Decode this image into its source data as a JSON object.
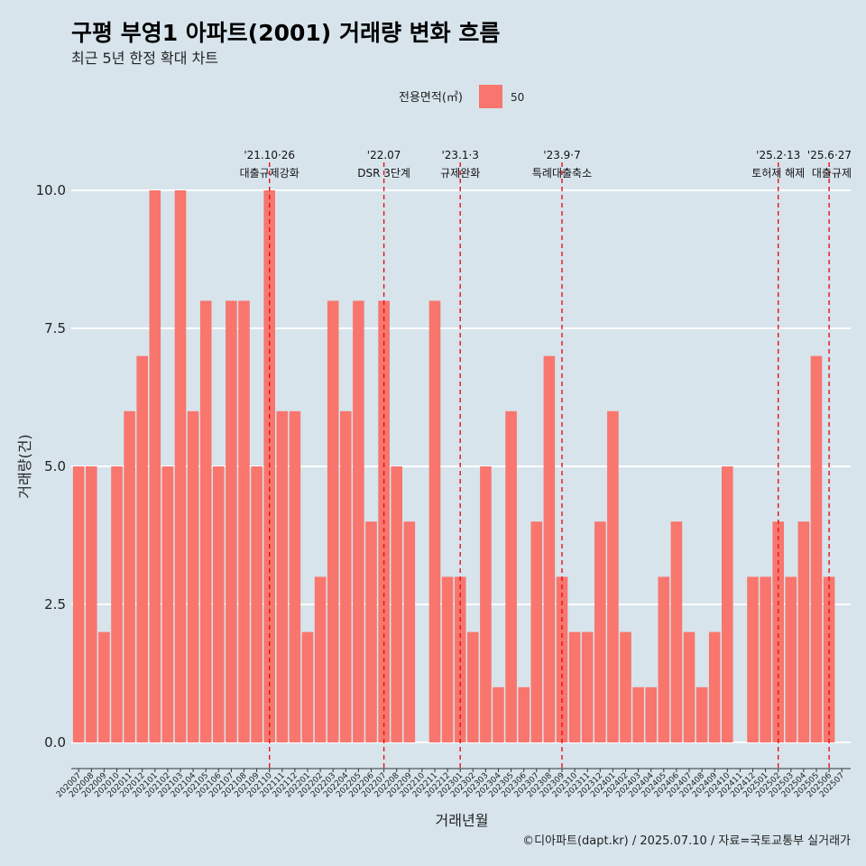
{
  "chart_data": {
    "type": "bar",
    "title": "구평 부영1 아파트(2001) 거래량 변화 흐름",
    "subtitle": "최근 5년 한정 확대 차트",
    "xlabel": "거래년월",
    "ylabel": "거래량(건)",
    "caption": "©디아파트(dapt.kr) / 2025.07.10 / 자료=국토교통부 실거래가",
    "legend": {
      "title": "전용면적(㎡)",
      "entries": [
        {
          "label": "50",
          "color": "#f8766d"
        }
      ],
      "position": "top"
    },
    "ylim": [
      0,
      10.5
    ],
    "yticks": [
      0,
      2.5,
      5,
      7.5,
      10
    ],
    "ytick_labels": [
      "0.0",
      "2.5",
      "5.0",
      "7.5",
      "10.0"
    ],
    "grid": true,
    "bar_color": "#f8766d",
    "categories": [
      "202007",
      "202008",
      "202009",
      "202010",
      "202011",
      "202012",
      "202101",
      "202102",
      "202103",
      "202104",
      "202105",
      "202106",
      "202107",
      "202108",
      "202109",
      "202110",
      "202111",
      "202112",
      "202201",
      "202202",
      "202203",
      "202204",
      "202205",
      "202206",
      "202207",
      "202208",
      "202209",
      "202210",
      "202211",
      "202212",
      "202301",
      "202302",
      "202303",
      "202304",
      "202305",
      "202306",
      "202307",
      "202308",
      "202309",
      "202310",
      "202311",
      "202312",
      "202401",
      "202402",
      "202403",
      "202404",
      "202405",
      "202406",
      "202407",
      "202408",
      "202409",
      "202410",
      "202411",
      "202412",
      "202501",
      "202502",
      "202503",
      "202504",
      "202505",
      "202506",
      "202507"
    ],
    "values": [
      5,
      5,
      2,
      5,
      6,
      7,
      10,
      5,
      10,
      6,
      8,
      5,
      8,
      8,
      5,
      10,
      6,
      6,
      2,
      3,
      8,
      6,
      8,
      4,
      8,
      5,
      4,
      0,
      8,
      3,
      3,
      2,
      5,
      1,
      6,
      1,
      4,
      7,
      3,
      2,
      2,
      4,
      6,
      2,
      1,
      1,
      3,
      4,
      2,
      1,
      2,
      5,
      0,
      3,
      3,
      4,
      3,
      4,
      7,
      3,
      0
    ],
    "events": [
      {
        "x": "202110",
        "date": "'21.10·26",
        "label": "대출규제강화"
      },
      {
        "x": "202207",
        "date": "'22.07",
        "label": "DSR 3단계"
      },
      {
        "x": "202301",
        "date": "'23.1·3",
        "label": "규제완화"
      },
      {
        "x": "202309",
        "date": "'23.9·7",
        "label": "특례대출축소"
      },
      {
        "x": "202502",
        "date": "'25.2·13",
        "label": "토허제 해제"
      },
      {
        "x": "202506",
        "date": "'25.6·27",
        "label": "대출규제"
      }
    ]
  },
  "colors": {
    "background": "#d7e4ec",
    "grid": "#ffffff",
    "event_line": "#e8111b"
  }
}
